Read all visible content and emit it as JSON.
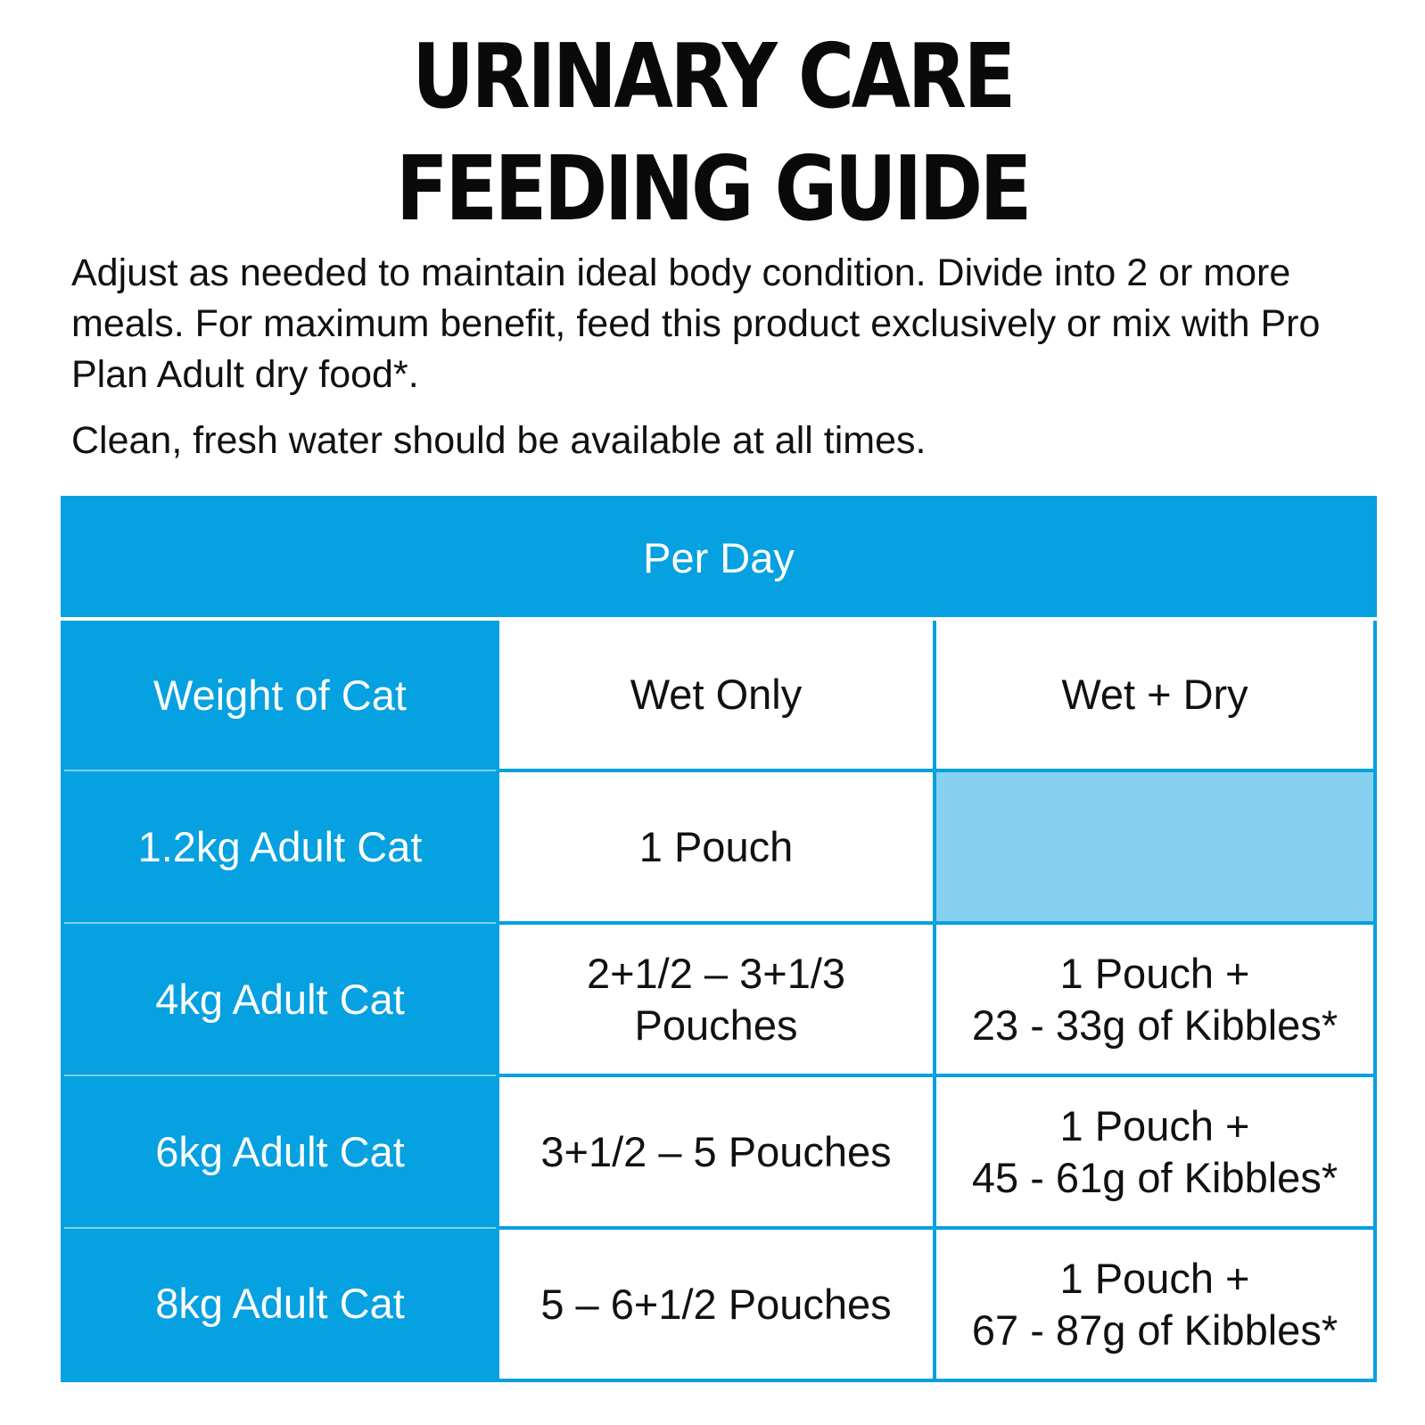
{
  "title": {
    "line1": "URINARY CARE",
    "line2": "FEEDING GUIDE"
  },
  "intro": {
    "paragraph1": "Adjust as needed to maintain ideal body condition. Divide into 2 or more meals. For maximum benefit, feed this product exclusively or mix with Pro Plan Adult dry food*.",
    "paragraph2": "Clean, fresh water should be available at all times."
  },
  "table": {
    "group_header": "Per Day",
    "columns": [
      "Weight of Cat",
      "Wet Only",
      "Wet + Dry"
    ],
    "rows": [
      {
        "weight": "1.2kg Adult Cat",
        "wet_only": "1 Pouch",
        "wet_dry_line1": "",
        "wet_dry_line2": ""
      },
      {
        "weight": "4kg Adult Cat",
        "wet_only_line1": "2+1/2 – 3+1/3",
        "wet_only_line2": "Pouches",
        "wet_dry_line1": "1 Pouch +",
        "wet_dry_line2": "23 - 33g of Kibbles*"
      },
      {
        "weight": "6kg Adult Cat",
        "wet_only": "3+1/2 – 5 Pouches",
        "wet_dry_line1": "1 Pouch +",
        "wet_dry_line2": "45 - 61g of Kibbles*"
      },
      {
        "weight": "8kg Adult Cat",
        "wet_only": "5 – 6+1/2 Pouches",
        "wet_dry_line1": "1 Pouch +",
        "wet_dry_line2": "67 - 87g of Kibbles*"
      }
    ]
  },
  "colors": {
    "brand_blue": "#05a1e0",
    "light_blue": "#86d0f0",
    "text": "#111111"
  }
}
